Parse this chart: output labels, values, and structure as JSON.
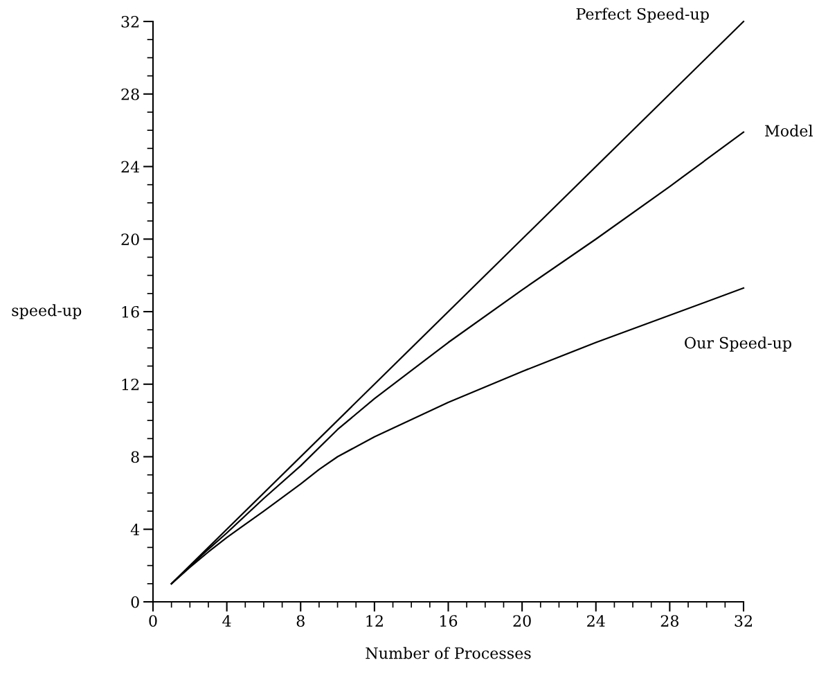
{
  "chart_data": {
    "type": "line",
    "xlabel": "Number of Processes",
    "ylabel": "speed-up",
    "xlim": [
      0,
      32
    ],
    "ylim": [
      0,
      32
    ],
    "xticks": [
      0,
      4,
      8,
      12,
      16,
      20,
      24,
      28,
      32
    ],
    "yticks": [
      0,
      4,
      8,
      12,
      16,
      20,
      24,
      28,
      32
    ],
    "grid": false,
    "legend": false,
    "marker": "none",
    "line_style": "solid",
    "series": [
      {
        "name": "Perfect Speed-up",
        "color": "#000000",
        "x": [
          1,
          32
        ],
        "values": [
          1,
          32
        ]
      },
      {
        "name": "Model",
        "color": "#000000",
        "x": [
          1,
          2,
          3,
          4,
          6,
          8,
          10,
          12,
          16,
          20,
          24,
          28,
          32
        ],
        "values": [
          1,
          1.95,
          2.9,
          3.8,
          5.7,
          7.5,
          9.5,
          11.2,
          14.3,
          17.2,
          20.0,
          22.9,
          25.9
        ]
      },
      {
        "name": "Our Speed-up",
        "color": "#000000",
        "x": [
          1,
          2,
          3,
          4,
          6,
          8,
          9,
          10,
          12,
          16,
          20,
          24,
          28,
          32
        ],
        "values": [
          1,
          1.9,
          2.75,
          3.55,
          5.0,
          6.5,
          7.3,
          8.0,
          9.1,
          11.0,
          12.7,
          14.3,
          15.8,
          17.3
        ]
      }
    ]
  }
}
